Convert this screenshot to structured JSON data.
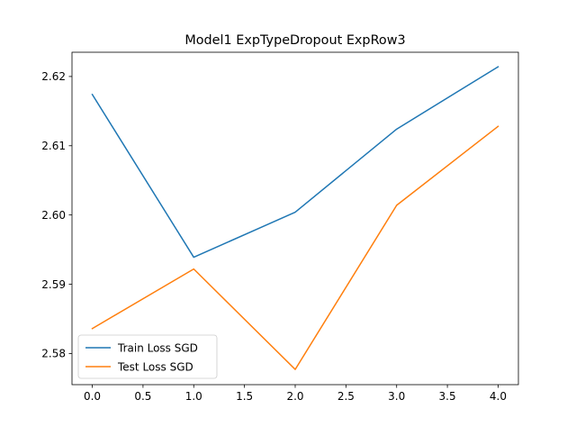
{
  "chart_data": {
    "type": "line",
    "title": "Model1 ExpTypeDropout ExpRow3",
    "xlabel": "",
    "ylabel": "",
    "x": [
      0,
      1,
      2,
      3,
      4
    ],
    "xlim": [
      -0.2,
      4.2
    ],
    "ylim": [
      2.5755,
      2.6235
    ],
    "x_ticks": [
      0,
      0.5,
      1,
      1.5,
      2,
      2.5,
      3,
      3.5,
      4
    ],
    "x_tick_labels": [
      "0.0",
      "0.5",
      "1.0",
      "1.5",
      "2.0",
      "2.5",
      "3.0",
      "3.5",
      "4.0"
    ],
    "y_ticks": [
      2.58,
      2.59,
      2.6,
      2.61,
      2.62
    ],
    "y_tick_labels": [
      "2.58",
      "2.59",
      "2.60",
      "2.61",
      "2.62"
    ],
    "grid": false,
    "legend_position": "lower-left",
    "series": [
      {
        "name": "Train Loss SGD",
        "color": "#1f77b4",
        "values": [
          2.6174,
          2.5939,
          2.6004,
          2.6124,
          2.6214
        ]
      },
      {
        "name": "Test Loss SGD",
        "color": "#ff7f0e",
        "values": [
          2.5836,
          2.5922,
          2.5777,
          2.6014,
          2.6128
        ]
      }
    ]
  }
}
